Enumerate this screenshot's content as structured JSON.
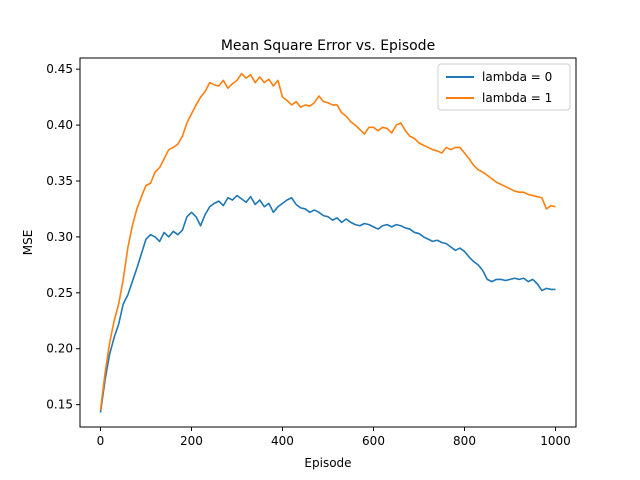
{
  "chart_data": {
    "type": "line",
    "title": "Mean Square Error vs. Episode",
    "xlabel": "Episode",
    "ylabel": "MSE",
    "xlim": [
      -45,
      1045
    ],
    "ylim": [
      0.13,
      0.46
    ],
    "xticks": [
      0,
      200,
      400,
      600,
      800,
      1000
    ],
    "yticks": [
      0.15,
      0.2,
      0.25,
      0.3,
      0.35,
      0.4,
      0.45
    ],
    "grid": false,
    "legend_position": "top-right",
    "series": [
      {
        "name": "lambda = 0",
        "color": "#1f77b4",
        "points": [
          [
            0,
            0.143
          ],
          [
            10,
            0.172
          ],
          [
            20,
            0.195
          ],
          [
            30,
            0.21
          ],
          [
            40,
            0.222
          ],
          [
            50,
            0.24
          ],
          [
            60,
            0.248
          ],
          [
            70,
            0.26
          ],
          [
            80,
            0.272
          ],
          [
            90,
            0.285
          ],
          [
            100,
            0.298
          ],
          [
            110,
            0.302
          ],
          [
            120,
            0.3
          ],
          [
            130,
            0.296
          ],
          [
            140,
            0.304
          ],
          [
            150,
            0.3
          ],
          [
            160,
            0.305
          ],
          [
            170,
            0.302
          ],
          [
            180,
            0.306
          ],
          [
            190,
            0.318
          ],
          [
            200,
            0.322
          ],
          [
            210,
            0.318
          ],
          [
            220,
            0.31
          ],
          [
            230,
            0.32
          ],
          [
            240,
            0.327
          ],
          [
            250,
            0.33
          ],
          [
            260,
            0.332
          ],
          [
            270,
            0.328
          ],
          [
            280,
            0.335
          ],
          [
            290,
            0.333
          ],
          [
            300,
            0.337
          ],
          [
            310,
            0.334
          ],
          [
            320,
            0.331
          ],
          [
            330,
            0.336
          ],
          [
            340,
            0.329
          ],
          [
            350,
            0.333
          ],
          [
            360,
            0.327
          ],
          [
            370,
            0.33
          ],
          [
            380,
            0.322
          ],
          [
            390,
            0.327
          ],
          [
            400,
            0.33
          ],
          [
            410,
            0.333
          ],
          [
            420,
            0.335
          ],
          [
            430,
            0.329
          ],
          [
            440,
            0.326
          ],
          [
            450,
            0.325
          ],
          [
            460,
            0.322
          ],
          [
            470,
            0.324
          ],
          [
            480,
            0.322
          ],
          [
            490,
            0.319
          ],
          [
            500,
            0.318
          ],
          [
            510,
            0.315
          ],
          [
            520,
            0.317
          ],
          [
            530,
            0.313
          ],
          [
            540,
            0.316
          ],
          [
            550,
            0.313
          ],
          [
            560,
            0.311
          ],
          [
            570,
            0.31
          ],
          [
            580,
            0.312
          ],
          [
            590,
            0.311
          ],
          [
            600,
            0.309
          ],
          [
            610,
            0.307
          ],
          [
            620,
            0.31
          ],
          [
            630,
            0.311
          ],
          [
            640,
            0.309
          ],
          [
            650,
            0.311
          ],
          [
            660,
            0.31
          ],
          [
            670,
            0.308
          ],
          [
            680,
            0.307
          ],
          [
            690,
            0.304
          ],
          [
            700,
            0.303
          ],
          [
            710,
            0.3
          ],
          [
            720,
            0.298
          ],
          [
            730,
            0.296
          ],
          [
            740,
            0.297
          ],
          [
            750,
            0.295
          ],
          [
            760,
            0.294
          ],
          [
            770,
            0.291
          ],
          [
            780,
            0.288
          ],
          [
            790,
            0.29
          ],
          [
            800,
            0.287
          ],
          [
            810,
            0.282
          ],
          [
            820,
            0.278
          ],
          [
            830,
            0.275
          ],
          [
            840,
            0.27
          ],
          [
            850,
            0.262
          ],
          [
            860,
            0.26
          ],
          [
            870,
            0.262
          ],
          [
            880,
            0.262
          ],
          [
            890,
            0.261
          ],
          [
            900,
            0.262
          ],
          [
            910,
            0.263
          ],
          [
            920,
            0.262
          ],
          [
            930,
            0.263
          ],
          [
            940,
            0.26
          ],
          [
            950,
            0.262
          ],
          [
            960,
            0.258
          ],
          [
            970,
            0.252
          ],
          [
            980,
            0.254
          ],
          [
            990,
            0.253
          ],
          [
            1000,
            0.253
          ]
        ]
      },
      {
        "name": "lambda = 1",
        "color": "#ff7f0e",
        "points": [
          [
            0,
            0.145
          ],
          [
            10,
            0.178
          ],
          [
            20,
            0.205
          ],
          [
            30,
            0.225
          ],
          [
            40,
            0.24
          ],
          [
            50,
            0.262
          ],
          [
            60,
            0.29
          ],
          [
            70,
            0.31
          ],
          [
            80,
            0.325
          ],
          [
            90,
            0.336
          ],
          [
            100,
            0.346
          ],
          [
            110,
            0.348
          ],
          [
            120,
            0.358
          ],
          [
            130,
            0.362
          ],
          [
            140,
            0.37
          ],
          [
            150,
            0.378
          ],
          [
            160,
            0.38
          ],
          [
            170,
            0.383
          ],
          [
            180,
            0.39
          ],
          [
            190,
            0.402
          ],
          [
            200,
            0.41
          ],
          [
            210,
            0.418
          ],
          [
            220,
            0.425
          ],
          [
            230,
            0.43
          ],
          [
            240,
            0.438
          ],
          [
            250,
            0.436
          ],
          [
            260,
            0.435
          ],
          [
            270,
            0.44
          ],
          [
            280,
            0.433
          ],
          [
            290,
            0.437
          ],
          [
            300,
            0.44
          ],
          [
            310,
            0.446
          ],
          [
            320,
            0.442
          ],
          [
            330,
            0.445
          ],
          [
            340,
            0.438
          ],
          [
            350,
            0.443
          ],
          [
            360,
            0.438
          ],
          [
            370,
            0.441
          ],
          [
            380,
            0.435
          ],
          [
            390,
            0.44
          ],
          [
            400,
            0.425
          ],
          [
            410,
            0.422
          ],
          [
            420,
            0.418
          ],
          [
            430,
            0.421
          ],
          [
            440,
            0.416
          ],
          [
            450,
            0.418
          ],
          [
            460,
            0.417
          ],
          [
            470,
            0.42
          ],
          [
            480,
            0.426
          ],
          [
            490,
            0.421
          ],
          [
            500,
            0.42
          ],
          [
            510,
            0.418
          ],
          [
            520,
            0.418
          ],
          [
            530,
            0.411
          ],
          [
            540,
            0.408
          ],
          [
            550,
            0.403
          ],
          [
            560,
            0.4
          ],
          [
            570,
            0.396
          ],
          [
            580,
            0.392
          ],
          [
            590,
            0.398
          ],
          [
            600,
            0.398
          ],
          [
            610,
            0.395
          ],
          [
            620,
            0.398
          ],
          [
            630,
            0.397
          ],
          [
            640,
            0.393
          ],
          [
            650,
            0.4
          ],
          [
            660,
            0.402
          ],
          [
            670,
            0.395
          ],
          [
            680,
            0.39
          ],
          [
            690,
            0.388
          ],
          [
            700,
            0.384
          ],
          [
            710,
            0.382
          ],
          [
            720,
            0.38
          ],
          [
            730,
            0.378
          ],
          [
            740,
            0.377
          ],
          [
            750,
            0.375
          ],
          [
            760,
            0.38
          ],
          [
            770,
            0.378
          ],
          [
            780,
            0.38
          ],
          [
            790,
            0.38
          ],
          [
            800,
            0.375
          ],
          [
            810,
            0.37
          ],
          [
            820,
            0.364
          ],
          [
            830,
            0.36
          ],
          [
            840,
            0.358
          ],
          [
            850,
            0.355
          ],
          [
            860,
            0.352
          ],
          [
            870,
            0.349
          ],
          [
            880,
            0.347
          ],
          [
            890,
            0.345
          ],
          [
            900,
            0.343
          ],
          [
            910,
            0.341
          ],
          [
            920,
            0.34
          ],
          [
            930,
            0.34
          ],
          [
            940,
            0.338
          ],
          [
            950,
            0.337
          ],
          [
            960,
            0.336
          ],
          [
            970,
            0.335
          ],
          [
            980,
            0.325
          ],
          [
            990,
            0.328
          ],
          [
            1000,
            0.327
          ]
        ]
      }
    ]
  }
}
